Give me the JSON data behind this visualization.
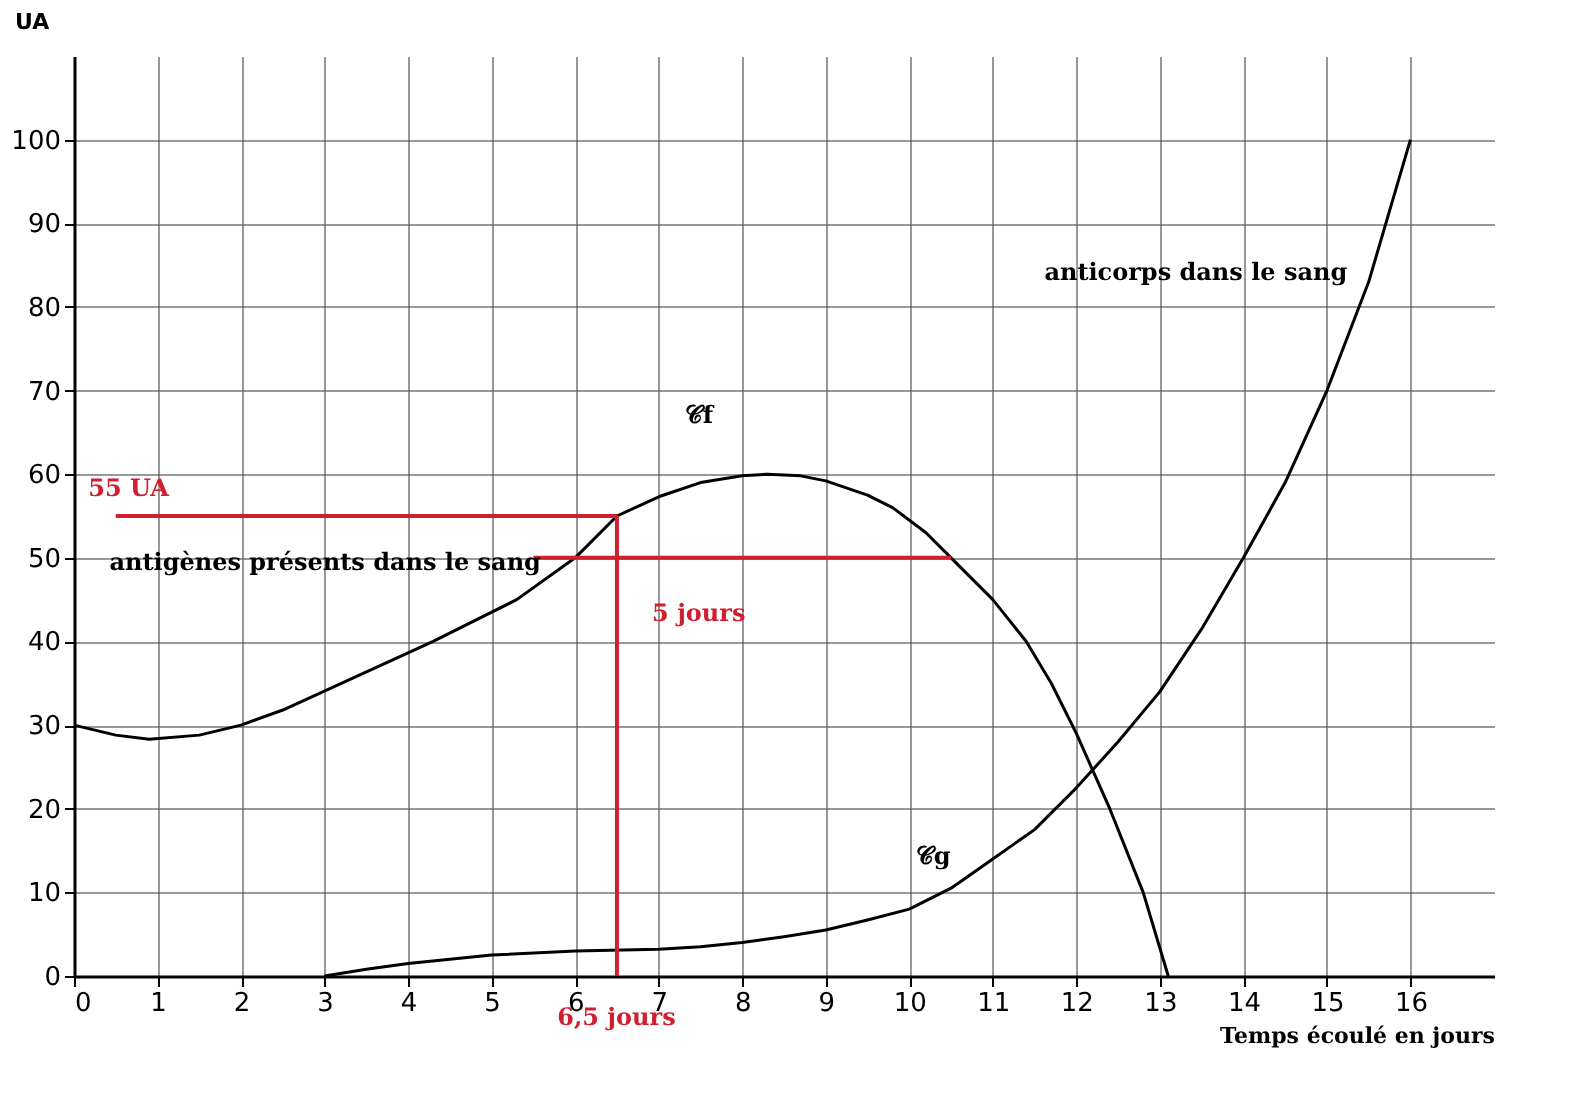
{
  "chart_data": {
    "type": "line",
    "xlabel": "Temps écoulé en jours",
    "ylabel": "UA",
    "xlim": [
      0,
      17
    ],
    "ylim": [
      0,
      110
    ],
    "xticks": [
      0,
      1,
      2,
      3,
      4,
      5,
      6,
      7,
      8,
      9,
      10,
      11,
      12,
      13,
      14,
      15,
      16
    ],
    "yticks": [
      0,
      10,
      20,
      30,
      40,
      50,
      60,
      70,
      80,
      90,
      100
    ],
    "grid": true,
    "marker": "none",
    "line_style": "solid",
    "series": [
      {
        "color": "#000000",
        "x": [
          0,
          0.5,
          0.9,
          1.5,
          2,
          2.5,
          3.2,
          4.3,
          5.3,
          6,
          6.5,
          7,
          7.5,
          8,
          8.3,
          8.7,
          9,
          9.5,
          9.8,
          10.2,
          10.5,
          11,
          11.4,
          11.7,
          12,
          12.4,
          12.8,
          13.1
        ],
        "values": [
          30,
          28.8,
          28.3,
          28.8,
          30,
          31.8,
          35,
          40,
          45,
          50,
          55,
          57.3,
          59,
          59.8,
          60,
          59.8,
          59.2,
          57.5,
          56,
          53,
          50,
          45,
          40,
          35,
          29,
          20,
          10,
          0
        ]
      },
      {
        "color": "#000000",
        "x": [
          3,
          3.5,
          4,
          5,
          6,
          7,
          7.5,
          8,
          8.5,
          9,
          9.5,
          10,
          10.5,
          11,
          11.5,
          12,
          12.5,
          13,
          13.5,
          14,
          14.5,
          15,
          15.5,
          16
        ],
        "values": [
          0,
          0.8,
          1.5,
          2.5,
          3,
          3.2,
          3.5,
          4,
          4.7,
          5.5,
          6.7,
          8,
          10.5,
          14,
          17.5,
          22.5,
          28,
          34,
          41.5,
          50,
          59,
          70,
          83,
          100
        ]
      },
      {
        "color": "#d0202f",
        "x": [
          0.5,
          6.5
        ],
        "values": [
          55,
          55
        ]
      },
      {
        "color": "#d0202f",
        "x": [
          6.5,
          6.5
        ],
        "values": [
          0,
          55
        ]
      },
      {
        "color": "#d0202f",
        "x": [
          5.5,
          10.5
        ],
        "values": [
          50,
          50
        ]
      }
    ],
    "annotations": [
      "𝒞f",
      "𝒞g",
      "anticorps dans le sang",
      "antigènes présents dans le sang",
      "55 UA",
      "5 jours",
      "6,5 jours"
    ]
  }
}
